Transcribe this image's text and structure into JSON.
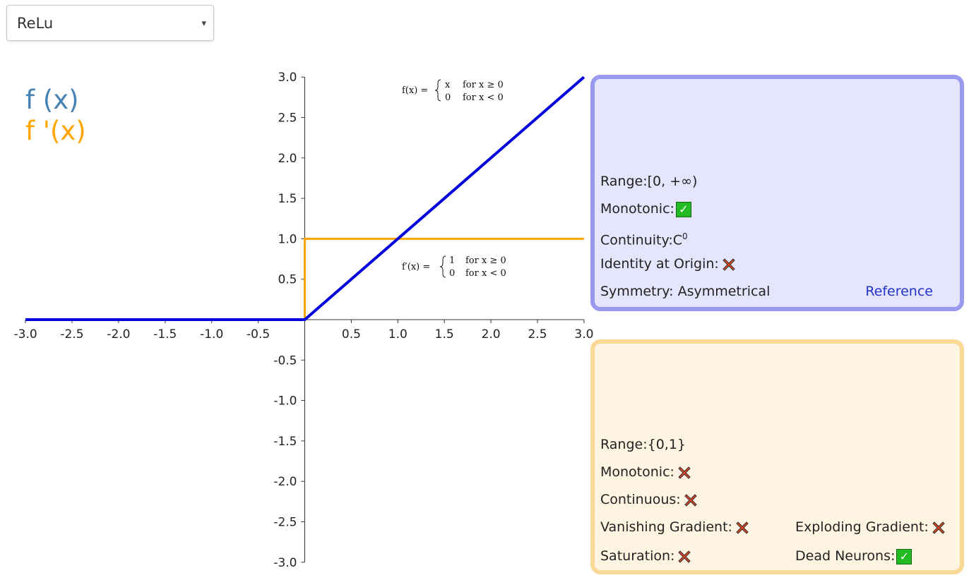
{
  "selector": {
    "value": "ReLu",
    "caret": "▾"
  },
  "legend": {
    "f": "f (x)",
    "fprime": "f '(x)"
  },
  "colors": {
    "function": "#0000dd",
    "derivative": "#ffa500",
    "legend_f": "#4682b4",
    "legend_fp": "#ffa500",
    "check": "#22bb22",
    "cross": "#dd4422"
  },
  "equations": {
    "f_lhs": "f(x) =",
    "f_case1_val": "x",
    "f_case1_cond": "for x ≥ 0",
    "f_case2_val": "0",
    "f_case2_cond": "for x < 0",
    "fp_lhs": "f′(x) =",
    "fp_case1_val": "1",
    "fp_case1_cond": "for x ≥ 0",
    "fp_case2_val": "0",
    "fp_case2_cond": "for x < 0"
  },
  "chart_data": {
    "type": "line",
    "x_ticks": [
      "-3.0",
      "-2.5",
      "-2.0",
      "-1.5",
      "-1.0",
      "-0.5",
      "0.5",
      "1.0",
      "1.5",
      "2.0",
      "2.5",
      "3.0"
    ],
    "y_ticks": [
      "3.0",
      "2.5",
      "2.0",
      "1.5",
      "1.0",
      "0.5",
      "-0.5",
      "-1.0",
      "-1.5",
      "-2.0",
      "-2.5",
      "-3.0"
    ],
    "xlim": [
      -3,
      3
    ],
    "ylim": [
      -3,
      3
    ],
    "series": [
      {
        "key": "function",
        "points": [
          [
            -3,
            0
          ],
          [
            0,
            0
          ],
          [
            3,
            3
          ]
        ]
      },
      {
        "key": "derivative",
        "points": [
          [
            -3,
            0
          ],
          [
            0,
            0
          ],
          [
            0,
            1
          ],
          [
            3,
            1
          ]
        ]
      }
    ]
  },
  "function_panel": {
    "range_label": "Range:",
    "range_value": "[0, +∞)",
    "monotonic_label": "Monotonic:",
    "monotonic": true,
    "continuity_label": "Continuity:",
    "continuity_value": "C",
    "continuity_sup": "0",
    "identity_label": "Identity at Origin:",
    "identity": false,
    "symmetry_label": "Symmetry:",
    "symmetry_value": " Asymmetrical",
    "reference_label": "Reference"
  },
  "derivative_panel": {
    "range_label": "Range:",
    "range_value": "{0,1}",
    "monotonic_label": "Monotonic:",
    "monotonic": false,
    "continuous_label": "Continuous:",
    "continuous": false,
    "vanishing_label": "Vanishing Gradient:",
    "vanishing": false,
    "exploding_label": "Exploding Gradient:",
    "exploding": false,
    "saturation_label": "Saturation:",
    "saturation": false,
    "dead_label": "Dead Neurons:",
    "dead": true
  }
}
